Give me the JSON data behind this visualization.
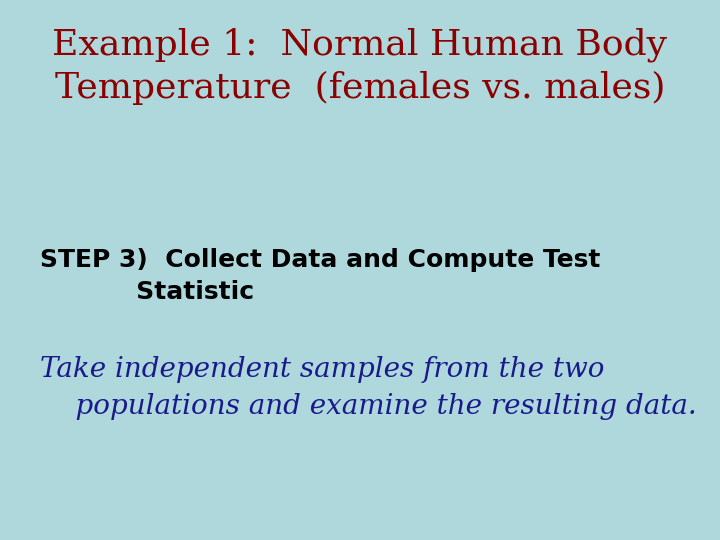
{
  "background_color": "#aed8dc",
  "title_line1": "Example 1:  Normal Human Body",
  "title_line2": "Temperature  (females vs. males)",
  "title_color": "#8b0000",
  "title_fontsize": 26,
  "step_label": "STEP 3)  ",
  "step_body_line1": "Collect Data and Compute Test",
  "step_body_line2": "Statistic",
  "step_color": "#000000",
  "step_fontsize": 18,
  "body_line1": "Take independent samples from the two",
  "body_line2": "    populations and examine the resulting data.",
  "body_color": "#1a1a8c",
  "body_fontsize": 20
}
